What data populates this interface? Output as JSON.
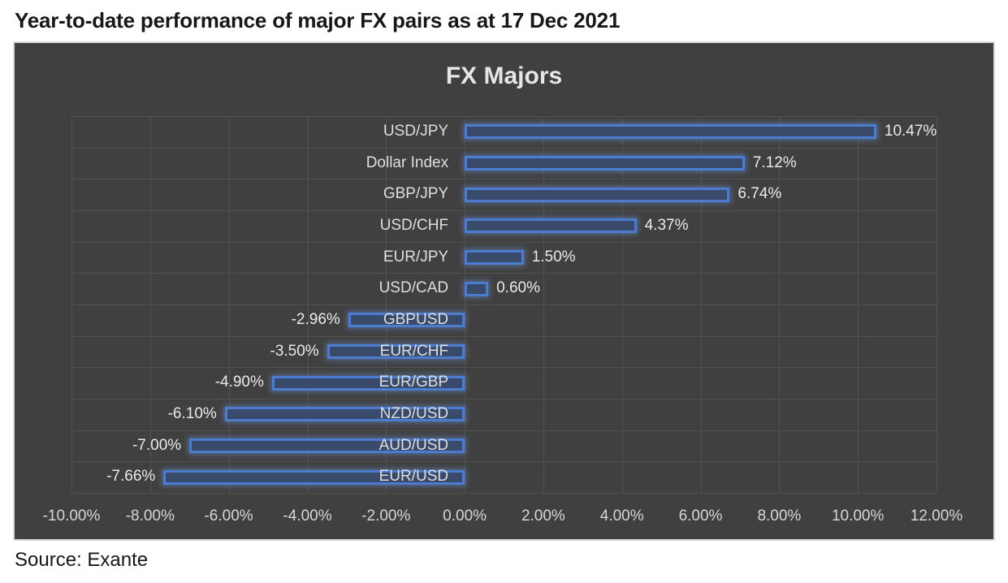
{
  "header": {
    "title": "Year-to-date performance of major FX pairs as at 17 Dec 2021"
  },
  "footer": {
    "source": "Source: Exante"
  },
  "colors": {
    "chart_bg": "#404040",
    "chart_border": "#D9D9D9",
    "gridline": "#525252",
    "bar_fill": "#394A6A",
    "bar_border": "#4C7CD0",
    "bar_glow": "rgba(110,155,230,0.45)",
    "title_text": "#E6E6E6",
    "label_text": "#DEDEDE",
    "value_text": "#EAEAEA",
    "axis_text": "#D6D6D6"
  },
  "chart_data": {
    "type": "bar",
    "orientation": "horizontal",
    "title": "FX Majors",
    "xlabel": "",
    "ylabel": "",
    "xlim": [
      -10,
      12
    ],
    "grid": true,
    "legend": false,
    "categories": [
      "USD/JPY",
      "Dollar Index",
      "GBP/JPY",
      "USD/CHF",
      "EUR/JPY",
      "USD/CAD",
      "GBPUSD",
      "EUR/CHF",
      "EUR/GBP",
      "NZD/USD",
      "AUD/USD",
      "EUR/USD"
    ],
    "values": [
      10.47,
      7.12,
      6.74,
      4.37,
      1.5,
      0.6,
      -2.96,
      -3.5,
      -4.9,
      -6.1,
      -7.0,
      -7.66
    ],
    "data_labels": [
      "10.47%",
      "7.12%",
      "6.74%",
      "4.37%",
      "1.50%",
      "0.60%",
      "-2.96%",
      "-3.50%",
      "-4.90%",
      "-6.10%",
      "-7.00%",
      "-7.66%"
    ],
    "x_tick_values": [
      -10,
      -8,
      -6,
      -4,
      -2,
      0,
      2,
      4,
      6,
      8,
      10,
      12
    ],
    "x_tick_labels": [
      "-10.00%",
      "-8.00%",
      "-6.00%",
      "-4.00%",
      "-2.00%",
      "0.00%",
      "2.00%",
      "4.00%",
      "6.00%",
      "8.00%",
      "10.00%",
      "12.00%"
    ]
  }
}
